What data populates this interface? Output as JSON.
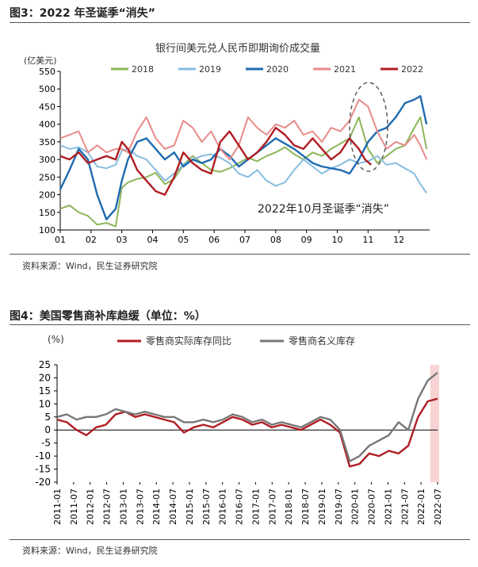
{
  "fig3": {
    "heading": "图3：2022 年圣诞季“消失”",
    "source": "资料来源：Wind，民生证券研究院"
  },
  "fig4": {
    "heading": "图4：美国零售商补库趋缓（单位：%）",
    "source": "资料来源：Wind，民生证券研究院"
  },
  "chart_data": [
    {
      "type": "line",
      "title": "银行间美元兑人民币即期询价成交量",
      "ylabel": "(亿美元)",
      "xlabel": "",
      "x_ticks": [
        "01",
        "02",
        "03",
        "04",
        "05",
        "06",
        "07",
        "08",
        "09",
        "10",
        "11",
        "12"
      ],
      "ylim": [
        100,
        550
      ],
      "y_ticks": [
        100,
        150,
        200,
        250,
        300,
        350,
        400,
        450,
        500,
        550
      ],
      "grid": false,
      "legend": "top",
      "annotation": "2022年10月圣诞季“消失”",
      "series": [
        {
          "name": "2018",
          "color": "#8db55a",
          "x": [
            1,
            1.3,
            1.6,
            1.9,
            2.2,
            2.5,
            2.8,
            3.0,
            3.2,
            3.5,
            3.8,
            4.1,
            4.4,
            4.7,
            5.0,
            5.3,
            5.6,
            5.9,
            6.2,
            6.5,
            6.8,
            7.1,
            7.4,
            7.7,
            8.0,
            8.3,
            8.6,
            8.9,
            9.2,
            9.5,
            9.8,
            10.1,
            10.4,
            10.7,
            11.0,
            11.3,
            11.6,
            11.9,
            12.2,
            12.5,
            12.7,
            12.9
          ],
          "y": [
            160,
            170,
            150,
            140,
            115,
            120,
            110,
            220,
            235,
            245,
            250,
            262,
            230,
            245,
            285,
            310,
            290,
            270,
            265,
            275,
            290,
            305,
            295,
            310,
            320,
            335,
            315,
            300,
            320,
            310,
            330,
            345,
            360,
            420,
            330,
            290,
            310,
            330,
            340,
            390,
            420,
            330
          ]
        },
        {
          "name": "2019",
          "color": "#86bde0",
          "x": [
            1,
            1.3,
            1.6,
            1.9,
            2.2,
            2.5,
            2.8,
            3.0,
            3.2,
            3.5,
            3.8,
            4.1,
            4.4,
            4.7,
            5.0,
            5.3,
            5.6,
            5.9,
            6.2,
            6.5,
            6.8,
            7.1,
            7.4,
            7.7,
            8.0,
            8.3,
            8.6,
            8.9,
            9.2,
            9.5,
            9.8,
            10.1,
            10.4,
            10.7,
            11.0,
            11.3,
            11.6,
            11.9,
            12.2,
            12.5,
            12.7,
            12.9
          ],
          "y": [
            340,
            330,
            335,
            320,
            280,
            275,
            285,
            325,
            330,
            310,
            300,
            270,
            240,
            260,
            285,
            300,
            310,
            315,
            305,
            290,
            260,
            250,
            270,
            240,
            225,
            235,
            270,
            300,
            280,
            260,
            275,
            285,
            300,
            290,
            295,
            310,
            285,
            290,
            275,
            260,
            230,
            205
          ]
        },
        {
          "name": "2020",
          "color": "#1f6bb0",
          "x": [
            1,
            1.3,
            1.6,
            1.9,
            2.2,
            2.5,
            2.8,
            3.0,
            3.2,
            3.5,
            3.8,
            4.1,
            4.4,
            4.7,
            5.0,
            5.3,
            5.6,
            5.9,
            6.2,
            6.5,
            6.8,
            7.1,
            7.4,
            7.7,
            8.0,
            8.3,
            8.6,
            8.9,
            9.2,
            9.5,
            9.8,
            10.1,
            10.4,
            10.7,
            11.0,
            11.3,
            11.6,
            11.9,
            12.2,
            12.5,
            12.7,
            12.9
          ],
          "y": [
            215,
            270,
            330,
            300,
            200,
            130,
            160,
            240,
            300,
            350,
            360,
            330,
            300,
            320,
            280,
            300,
            290,
            300,
            330,
            310,
            280,
            300,
            320,
            340,
            360,
            345,
            330,
            310,
            290,
            280,
            275,
            270,
            260,
            300,
            350,
            380,
            390,
            420,
            460,
            470,
            480,
            400
          ]
        },
        {
          "name": "2021",
          "color": "#e88a8a",
          "x": [
            1,
            1.3,
            1.6,
            1.9,
            2.2,
            2.5,
            2.8,
            3.0,
            3.2,
            3.5,
            3.8,
            4.1,
            4.4,
            4.7,
            5.0,
            5.3,
            5.6,
            5.9,
            6.2,
            6.5,
            6.8,
            7.1,
            7.4,
            7.7,
            8.0,
            8.3,
            8.6,
            8.9,
            9.2,
            9.5,
            9.8,
            10.1,
            10.4,
            10.7,
            11.0,
            11.3,
            11.6,
            11.9,
            12.2,
            12.5,
            12.7,
            12.9
          ],
          "y": [
            360,
            370,
            380,
            320,
            340,
            320,
            330,
            330,
            320,
            380,
            420,
            360,
            330,
            340,
            410,
            390,
            350,
            380,
            330,
            300,
            340,
            420,
            390,
            370,
            400,
            390,
            410,
            370,
            380,
            350,
            390,
            380,
            410,
            470,
            450,
            380,
            330,
            350,
            340,
            370,
            340,
            300
          ]
        },
        {
          "name": "2022",
          "color": "#b01d23",
          "x": [
            1,
            1.3,
            1.6,
            1.9,
            2.2,
            2.5,
            2.8,
            3.0,
            3.2,
            3.5,
            3.8,
            4.1,
            4.4,
            4.7,
            5.0,
            5.3,
            5.6,
            5.9,
            6.2,
            6.5,
            6.8,
            7.1,
            7.4,
            7.7,
            8.0,
            8.3,
            8.6,
            8.9,
            9.2,
            9.5,
            9.8,
            10.1,
            10.4,
            10.7,
            10.9,
            11.1
          ],
          "y": [
            310,
            300,
            320,
            290,
            300,
            310,
            300,
            350,
            330,
            270,
            240,
            210,
            200,
            250,
            320,
            290,
            270,
            260,
            350,
            380,
            340,
            300,
            320,
            350,
            390,
            370,
            340,
            330,
            360,
            330,
            300,
            320,
            360,
            330,
            300,
            285
          ]
        }
      ]
    },
    {
      "type": "line",
      "title": "",
      "ylabel": "(%)",
      "xlabel": "",
      "ylim": [
        -20,
        25
      ],
      "y_ticks": [
        -20,
        -15,
        -10,
        -5,
        0,
        5,
        10,
        15,
        20,
        25
      ],
      "x_ticks": [
        "2011-01",
        "2011-07",
        "2012-01",
        "2012-07",
        "2013-01",
        "2013-07",
        "2014-01",
        "2014-07",
        "2015-01",
        "2015-07",
        "2016-01",
        "2016-07",
        "2017-01",
        "2017-07",
        "2018-01",
        "2018-07",
        "2019-01",
        "2019-07",
        "2020-01",
        "2020-07",
        "2021-01",
        "2021-07",
        "2022-01",
        "2022-07"
      ],
      "grid": false,
      "legend": "top",
      "shaded_period": [
        "2022-01",
        "2022-07"
      ],
      "series": [
        {
          "name": "零售商实际库存同比",
          "color": "#b01d23",
          "y": [
            4,
            3,
            0,
            -2,
            1,
            2,
            6,
            7,
            5,
            6,
            5,
            4,
            3,
            -1,
            1,
            2,
            1,
            3,
            5,
            4,
            2,
            3,
            1,
            2,
            1,
            0,
            2,
            4,
            2,
            -1,
            -14,
            -13,
            -9,
            -10,
            -8,
            -9,
            -6,
            5,
            11,
            12
          ]
        },
        {
          "name": "零售商名义库存",
          "color": "#777777",
          "y": [
            5,
            6,
            4,
            5,
            5,
            6,
            8,
            7,
            6,
            7,
            6,
            5,
            5,
            3,
            3,
            4,
            3,
            4,
            6,
            5,
            3,
            4,
            2,
            3,
            2,
            1,
            3,
            5,
            4,
            0,
            -12,
            -10,
            -6,
            -4,
            -2,
            3,
            0,
            12,
            19,
            22
          ]
        }
      ]
    }
  ]
}
